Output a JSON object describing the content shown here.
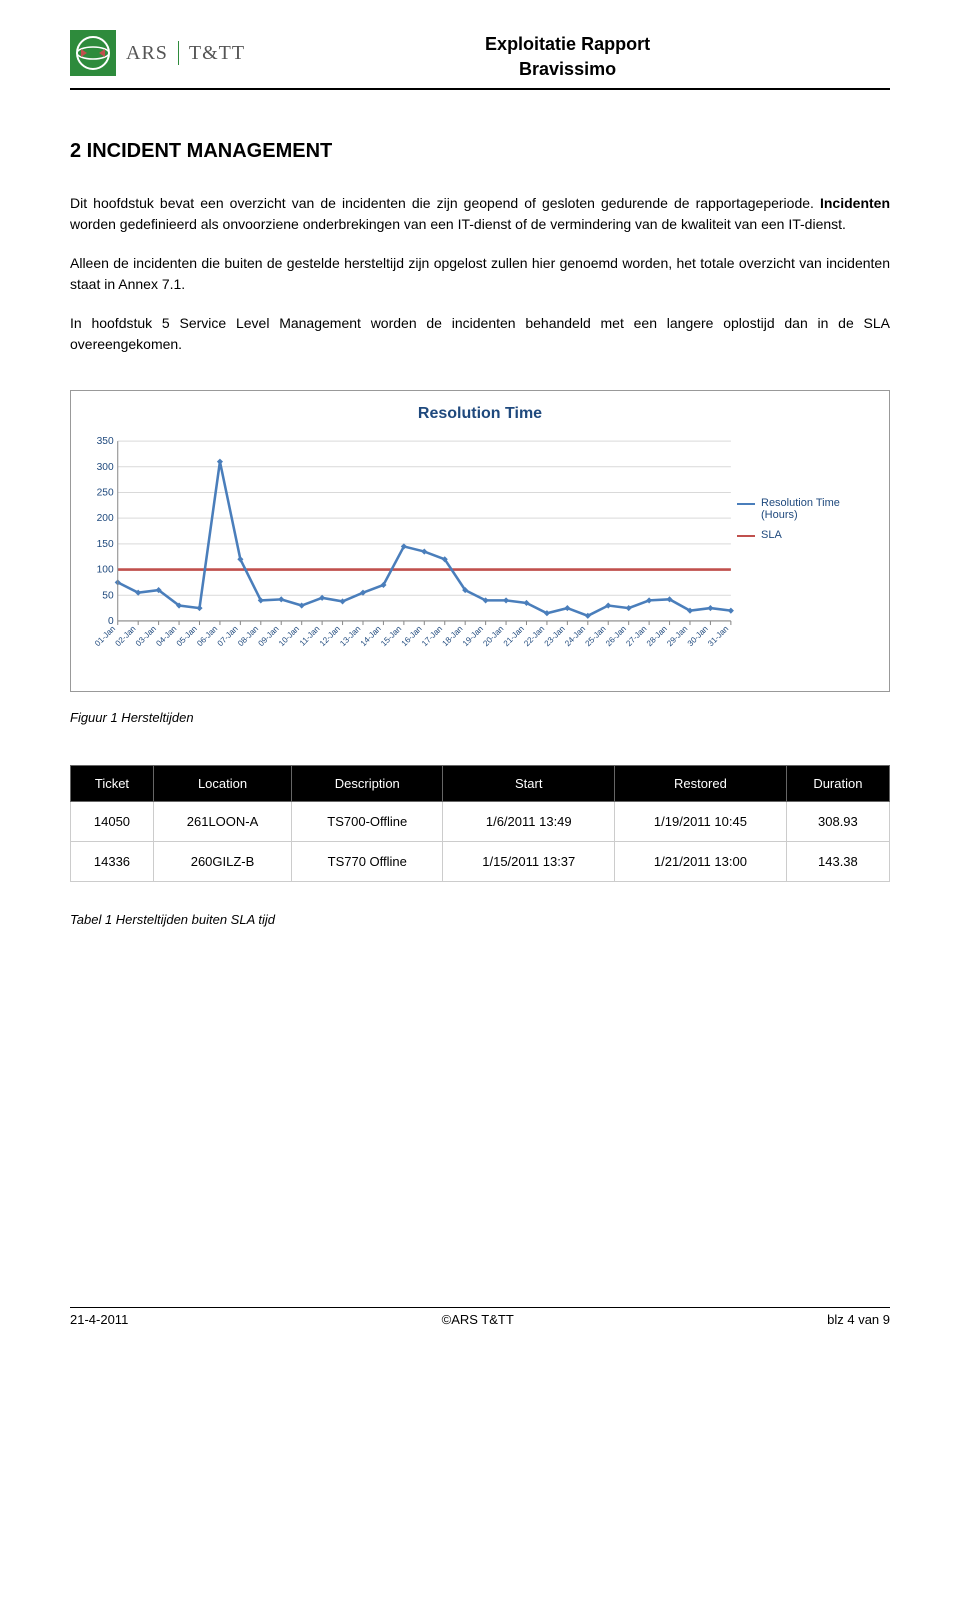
{
  "header": {
    "logo_ars": "ARS",
    "logo_ttt": "T&TT",
    "title_line1": "Exploitatie Rapport",
    "title_line2": "Bravissimo"
  },
  "section": {
    "heading": "2 INCIDENT MANAGEMENT",
    "p1a": "Dit hoofdstuk bevat een overzicht van de incidenten die zijn geopend of gesloten gedurende de rapportageperiode. ",
    "p1b_bold": "Incidenten",
    "p1c": " worden gedefinieerd als onvoorziene onderbrekingen van een IT-dienst of de vermindering van de kwaliteit van een IT-dienst.",
    "p2": "Alleen de incidenten die buiten de gestelde hersteltijd zijn opgelost zullen hier genoemd worden, het totale overzicht van incidenten staat in Annex 7.1.",
    "p3": "In hoofdstuk 5 Service Level Management worden de incidenten behandeld met een langere oplostijd dan in de SLA overeengekomen."
  },
  "chart": {
    "title": "Resolution Time",
    "y_ticks": [
      0,
      50,
      100,
      150,
      200,
      250,
      300,
      350
    ],
    "x_labels": [
      "01-Jan",
      "02-Jan",
      "03-Jan",
      "04-Jan",
      "05-Jan",
      "06-Jan",
      "07-Jan",
      "08-Jan",
      "09-Jan",
      "10-Jan",
      "11-Jan",
      "12-Jan",
      "13-Jan",
      "14-Jan",
      "15-Jan",
      "16-Jan",
      "17-Jan",
      "18-Jan",
      "19-Jan",
      "20-Jan",
      "21-Jan",
      "22-Jan",
      "23-Jan",
      "24-Jan",
      "25-Jan",
      "26-Jan",
      "27-Jan",
      "28-Jan",
      "29-Jan",
      "30-Jan",
      "31-Jan"
    ],
    "series_resolution": [
      75,
      55,
      60,
      30,
      25,
      310,
      120,
      40,
      42,
      30,
      45,
      38,
      55,
      70,
      145,
      135,
      120,
      60,
      40,
      40,
      35,
      15,
      25,
      10,
      30,
      25,
      40,
      42,
      20,
      25,
      20
    ],
    "sla_value": 100,
    "line_color": "#4a7ebb",
    "sla_color": "#c0504d",
    "marker_color": "#4a7ebb",
    "grid_color": "#d9d9d9",
    "axis_color": "#888888",
    "text_color": "#1f497d",
    "legend_resolution": "Resolution Time (Hours)",
    "legend_sla": "SLA",
    "ylim_max": 350
  },
  "figure_caption": "Figuur 1 Hersteltijden",
  "table": {
    "headers": [
      "Ticket",
      "Location",
      "Description",
      "Start",
      "Restored",
      "Duration"
    ],
    "rows": [
      [
        "14050",
        "261LOON-A",
        "TS700-Offline",
        "1/6/2011 13:49",
        "1/19/2011 10:45",
        "308.93"
      ],
      [
        "14336",
        "260GILZ-B",
        "TS770 Offline",
        "1/15/2011 13:37",
        "1/21/2011 13:00",
        "143.38"
      ]
    ]
  },
  "table_caption": "Tabel 1 Hersteltijden buiten SLA tijd",
  "footer": {
    "left": "21-4-2011",
    "center": "©ARS T&TT",
    "right": "blz 4 van 9"
  }
}
